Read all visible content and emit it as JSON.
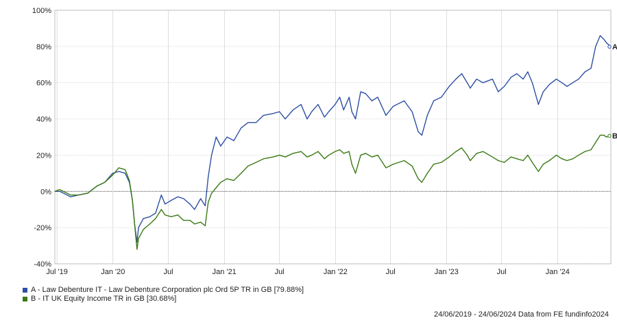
{
  "chart_data": {
    "type": "line",
    "y_axis": {
      "ticks": [
        -40,
        -20,
        0,
        20,
        40,
        60,
        80,
        100
      ],
      "tick_labels": [
        "-40%",
        "-20%",
        "0%",
        "20%",
        "40%",
        "60%",
        "80%",
        "100%"
      ],
      "ylim": [
        -40,
        100
      ]
    },
    "x_axis": {
      "xlim": [
        "2019-06-24",
        "2024-06-24"
      ],
      "ticks": [
        {
          "date": "2019-07-01",
          "label": "Jul '19"
        },
        {
          "date": "2020-01-01",
          "label": "Jan '20"
        },
        {
          "date": "2020-07-01",
          "label": "Jul"
        },
        {
          "date": "2021-01-01",
          "label": "Jan '21"
        },
        {
          "date": "2021-07-01",
          "label": "Jul"
        },
        {
          "date": "2022-01-01",
          "label": "Jan '22"
        },
        {
          "date": "2022-07-01",
          "label": "Jul"
        },
        {
          "date": "2023-01-01",
          "label": "Jan '23"
        },
        {
          "date": "2023-07-01",
          "label": "Jul"
        },
        {
          "date": "2024-01-01",
          "label": "Jan '24"
        }
      ]
    },
    "grid": true,
    "zero_line": true,
    "series": [
      {
        "name": "A - Law Debenture IT - Law Debenture Corporation plc Ord 5P TR in GB [79.88%]",
        "end_label": "A",
        "color": "#2e4fa3",
        "points": [
          [
            "2019-06-24",
            0
          ],
          [
            "2019-07-10",
            0
          ],
          [
            "2019-08-15",
            -3
          ],
          [
            "2019-09-10",
            -2
          ],
          [
            "2019-10-10",
            -1
          ],
          [
            "2019-11-10",
            3
          ],
          [
            "2019-12-05",
            5
          ],
          [
            "2019-12-31",
            10
          ],
          [
            "2020-01-20",
            11
          ],
          [
            "2020-02-10",
            10
          ],
          [
            "2020-02-24",
            5
          ],
          [
            "2020-03-05",
            -5
          ],
          [
            "2020-03-12",
            -18
          ],
          [
            "2020-03-20",
            -28
          ],
          [
            "2020-03-25",
            -20
          ],
          [
            "2020-04-10",
            -15
          ],
          [
            "2020-05-01",
            -14
          ],
          [
            "2020-05-20",
            -12
          ],
          [
            "2020-06-08",
            -2
          ],
          [
            "2020-06-20",
            -7
          ],
          [
            "2020-07-10",
            -5
          ],
          [
            "2020-08-01",
            -3
          ],
          [
            "2020-08-20",
            -4
          ],
          [
            "2020-09-10",
            -7
          ],
          [
            "2020-09-25",
            -10
          ],
          [
            "2020-10-15",
            -4
          ],
          [
            "2020-10-30",
            -8
          ],
          [
            "2020-11-09",
            8
          ],
          [
            "2020-11-20",
            20
          ],
          [
            "2020-12-05",
            30
          ],
          [
            "2020-12-20",
            25
          ],
          [
            "2021-01-10",
            30
          ],
          [
            "2021-02-01",
            28
          ],
          [
            "2021-02-25",
            35
          ],
          [
            "2021-03-20",
            38
          ],
          [
            "2021-04-15",
            38
          ],
          [
            "2021-05-10",
            42
          ],
          [
            "2021-06-10",
            43
          ],
          [
            "2021-07-01",
            44
          ],
          [
            "2021-07-20",
            40
          ],
          [
            "2021-08-15",
            45
          ],
          [
            "2021-09-10",
            48
          ],
          [
            "2021-09-30",
            40
          ],
          [
            "2021-10-15",
            44
          ],
          [
            "2021-11-05",
            48
          ],
          [
            "2021-11-26",
            41
          ],
          [
            "2021-12-10",
            44
          ],
          [
            "2021-12-31",
            48
          ],
          [
            "2022-01-15",
            52
          ],
          [
            "2022-01-28",
            45
          ],
          [
            "2022-02-15",
            52
          ],
          [
            "2022-02-24",
            44
          ],
          [
            "2022-03-08",
            40
          ],
          [
            "2022-03-25",
            55
          ],
          [
            "2022-04-10",
            54
          ],
          [
            "2022-05-01",
            50
          ],
          [
            "2022-05-20",
            52
          ],
          [
            "2022-06-16",
            42
          ],
          [
            "2022-07-10",
            47
          ],
          [
            "2022-08-15",
            50
          ],
          [
            "2022-09-10",
            44
          ],
          [
            "2022-09-30",
            33
          ],
          [
            "2022-10-12",
            31
          ],
          [
            "2022-10-30",
            42
          ],
          [
            "2022-11-20",
            50
          ],
          [
            "2022-12-15",
            52
          ],
          [
            "2023-01-10",
            58
          ],
          [
            "2023-02-01",
            62
          ],
          [
            "2023-02-20",
            65
          ],
          [
            "2023-03-10",
            60
          ],
          [
            "2023-03-20",
            57
          ],
          [
            "2023-04-10",
            62
          ],
          [
            "2023-05-01",
            60
          ],
          [
            "2023-06-01",
            62
          ],
          [
            "2023-06-20",
            55
          ],
          [
            "2023-07-10",
            58
          ],
          [
            "2023-08-01",
            63
          ],
          [
            "2023-08-20",
            65
          ],
          [
            "2023-09-10",
            62
          ],
          [
            "2023-09-25",
            66
          ],
          [
            "2023-10-10",
            60
          ],
          [
            "2023-10-30",
            48
          ],
          [
            "2023-11-15",
            55
          ],
          [
            "2023-12-05",
            59
          ],
          [
            "2023-12-28",
            62
          ],
          [
            "2024-01-15",
            60
          ],
          [
            "2024-02-01",
            58
          ],
          [
            "2024-02-20",
            60
          ],
          [
            "2024-03-10",
            62
          ],
          [
            "2024-03-31",
            66
          ],
          [
            "2024-04-20",
            68
          ],
          [
            "2024-05-05",
            80
          ],
          [
            "2024-05-20",
            86
          ],
          [
            "2024-06-01",
            84
          ],
          [
            "2024-06-10",
            82
          ],
          [
            "2024-06-24",
            79.88
          ]
        ]
      },
      {
        "name": "B - IT UK Equity Income TR in GB [30.68%]",
        "end_label": "B",
        "color": "#3a7a14",
        "points": [
          [
            "2019-06-24",
            0
          ],
          [
            "2019-07-10",
            1
          ],
          [
            "2019-08-15",
            -2
          ],
          [
            "2019-09-10",
            -2
          ],
          [
            "2019-10-10",
            -1
          ],
          [
            "2019-11-10",
            3
          ],
          [
            "2019-12-05",
            5
          ],
          [
            "2019-12-31",
            9
          ],
          [
            "2020-01-20",
            13
          ],
          [
            "2020-02-10",
            12
          ],
          [
            "2020-02-24",
            6
          ],
          [
            "2020-03-05",
            -5
          ],
          [
            "2020-03-12",
            -18
          ],
          [
            "2020-03-20",
            -32
          ],
          [
            "2020-03-25",
            -26
          ],
          [
            "2020-04-10",
            -21
          ],
          [
            "2020-05-01",
            -18
          ],
          [
            "2020-05-20",
            -15
          ],
          [
            "2020-06-08",
            -10
          ],
          [
            "2020-06-20",
            -13
          ],
          [
            "2020-07-10",
            -14
          ],
          [
            "2020-08-01",
            -13
          ],
          [
            "2020-08-20",
            -16
          ],
          [
            "2020-09-10",
            -16
          ],
          [
            "2020-09-25",
            -18
          ],
          [
            "2020-10-15",
            -17
          ],
          [
            "2020-10-30",
            -19
          ],
          [
            "2020-11-09",
            -6
          ],
          [
            "2020-11-20",
            -1
          ],
          [
            "2020-12-05",
            2
          ],
          [
            "2020-12-20",
            5
          ],
          [
            "2021-01-10",
            7
          ],
          [
            "2021-02-01",
            6
          ],
          [
            "2021-02-25",
            10
          ],
          [
            "2021-03-20",
            14
          ],
          [
            "2021-04-15",
            16
          ],
          [
            "2021-05-10",
            18
          ],
          [
            "2021-06-10",
            19
          ],
          [
            "2021-07-01",
            20
          ],
          [
            "2021-07-20",
            19
          ],
          [
            "2021-08-15",
            21
          ],
          [
            "2021-09-10",
            22
          ],
          [
            "2021-09-30",
            19
          ],
          [
            "2021-10-15",
            20
          ],
          [
            "2021-11-05",
            22
          ],
          [
            "2021-11-26",
            18
          ],
          [
            "2021-12-10",
            20
          ],
          [
            "2021-12-31",
            22
          ],
          [
            "2022-01-15",
            23
          ],
          [
            "2022-01-28",
            21
          ],
          [
            "2022-02-15",
            22
          ],
          [
            "2022-02-24",
            15
          ],
          [
            "2022-03-08",
            10
          ],
          [
            "2022-03-25",
            20
          ],
          [
            "2022-04-10",
            21
          ],
          [
            "2022-05-01",
            19
          ],
          [
            "2022-05-20",
            20
          ],
          [
            "2022-06-16",
            13
          ],
          [
            "2022-07-10",
            15
          ],
          [
            "2022-08-15",
            17
          ],
          [
            "2022-09-10",
            14
          ],
          [
            "2022-09-30",
            7
          ],
          [
            "2022-10-12",
            5
          ],
          [
            "2022-10-30",
            10
          ],
          [
            "2022-11-20",
            15
          ],
          [
            "2022-12-15",
            16
          ],
          [
            "2023-01-10",
            19
          ],
          [
            "2023-02-01",
            22
          ],
          [
            "2023-02-20",
            24
          ],
          [
            "2023-03-10",
            20
          ],
          [
            "2023-03-20",
            17
          ],
          [
            "2023-04-10",
            21
          ],
          [
            "2023-05-01",
            22
          ],
          [
            "2023-06-01",
            19
          ],
          [
            "2023-06-20",
            17
          ],
          [
            "2023-07-10",
            16
          ],
          [
            "2023-08-01",
            19
          ],
          [
            "2023-08-20",
            18
          ],
          [
            "2023-09-10",
            17
          ],
          [
            "2023-09-25",
            20
          ],
          [
            "2023-10-10",
            16
          ],
          [
            "2023-10-30",
            11
          ],
          [
            "2023-11-15",
            15
          ],
          [
            "2023-12-05",
            17
          ],
          [
            "2023-12-28",
            20
          ],
          [
            "2024-01-15",
            18
          ],
          [
            "2024-02-01",
            17
          ],
          [
            "2024-02-20",
            18
          ],
          [
            "2024-03-10",
            20
          ],
          [
            "2024-03-31",
            22
          ],
          [
            "2024-04-20",
            23
          ],
          [
            "2024-05-05",
            27
          ],
          [
            "2024-05-20",
            31
          ],
          [
            "2024-06-01",
            31
          ],
          [
            "2024-06-10",
            30
          ],
          [
            "2024-06-24",
            30.68
          ]
        ]
      }
    ]
  },
  "footer": {
    "text": "24/06/2019 - 24/06/2024 Data from FE fundinfo2024"
  }
}
